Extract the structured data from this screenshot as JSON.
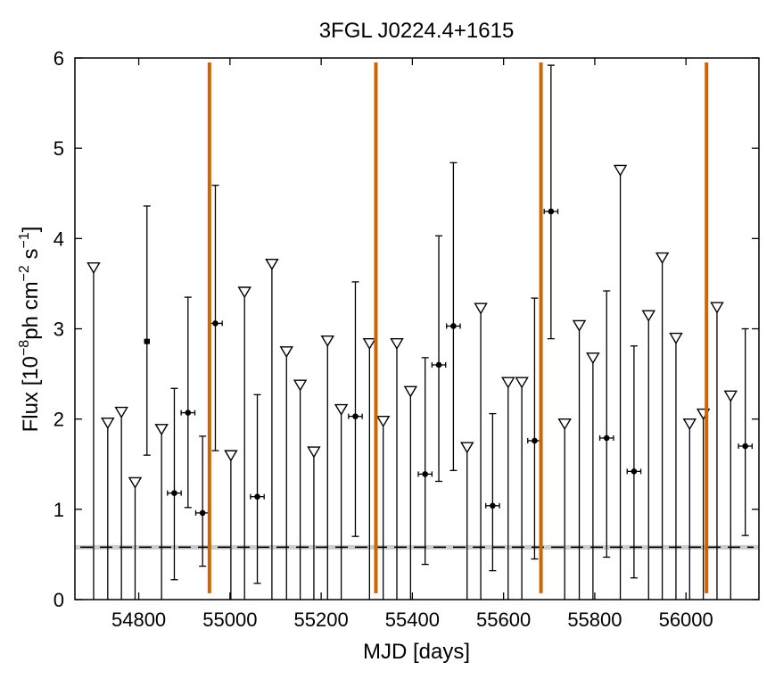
{
  "chart_data": {
    "type": "scatter",
    "title": "3FGL J0224.4+1615",
    "xlabel": "MJD [days]",
    "ylabel": {
      "prefix": "Flux [10",
      "exp1": "−8",
      "mid": "ph cm",
      "exp2": "−2",
      "mid2": " s",
      "exp3": "−1",
      "suffix": "]"
    },
    "xlim": [
      54660,
      56160
    ],
    "ylim": [
      0,
      6
    ],
    "xticks": [
      54800,
      55000,
      55200,
      55400,
      55600,
      55800,
      56000
    ],
    "yticks": [
      0,
      1,
      2,
      3,
      4,
      5,
      6
    ],
    "grid": false,
    "legend": "none",
    "colors": {
      "vertical_lines": "#cc6600",
      "baseline_band": "#cccccc",
      "baseline_dash": "#000000",
      "points": "#000000"
    },
    "baseline_flux": 0.58,
    "vertical_lines": [
      {
        "x": 54955,
        "y0": 0.07,
        "y1": 5.95
      },
      {
        "x": 55320,
        "y0": 0.07,
        "y1": 5.95
      },
      {
        "x": 55682,
        "y0": 0.07,
        "y1": 5.95
      },
      {
        "x": 56045,
        "y0": 0.07,
        "y1": 5.95
      }
    ],
    "detections": [
      {
        "x": 54818,
        "y": 2.86,
        "ylo": 1.6,
        "yhi": 4.36,
        "xerr": 5
      },
      {
        "x": 54878,
        "y": 1.18,
        "ylo": 0.22,
        "yhi": 2.34,
        "xerr": 15
      },
      {
        "x": 54908,
        "y": 2.07,
        "ylo": 1.02,
        "yhi": 3.35,
        "xerr": 15
      },
      {
        "x": 54940,
        "y": 0.96,
        "ylo": 0.37,
        "yhi": 1.81,
        "xerr": 15
      },
      {
        "x": 54968,
        "y": 3.06,
        "ylo": 1.65,
        "yhi": 4.59,
        "xerr": 15
      },
      {
        "x": 55060,
        "y": 1.14,
        "ylo": 0.18,
        "yhi": 2.27,
        "xerr": 15
      },
      {
        "x": 55275,
        "y": 2.03,
        "ylo": 0.7,
        "yhi": 3.52,
        "xerr": 15
      },
      {
        "x": 55428,
        "y": 1.39,
        "ylo": 0.39,
        "yhi": 2.68,
        "xerr": 15
      },
      {
        "x": 55458,
        "y": 2.6,
        "ylo": 1.31,
        "yhi": 4.03,
        "xerr": 15
      },
      {
        "x": 55490,
        "y": 3.03,
        "ylo": 1.43,
        "yhi": 4.84,
        "xerr": 15
      },
      {
        "x": 55576,
        "y": 1.04,
        "ylo": 0.32,
        "yhi": 2.06,
        "xerr": 15
      },
      {
        "x": 55668,
        "y": 1.76,
        "ylo": 0.45,
        "yhi": 3.34,
        "xerr": 15
      },
      {
        "x": 55704,
        "y": 4.3,
        "ylo": 2.89,
        "yhi": 5.92,
        "xerr": 15
      },
      {
        "x": 55826,
        "y": 1.79,
        "ylo": 0.47,
        "yhi": 3.42,
        "xerr": 15
      },
      {
        "x": 55886,
        "y": 1.42,
        "ylo": 0.24,
        "yhi": 2.81,
        "xerr": 15
      },
      {
        "x": 56130,
        "y": 1.7,
        "ylo": 0.71,
        "yhi": 3.0,
        "xerr": 15
      }
    ],
    "upper_limits": [
      {
        "x": 54701,
        "y": 3.69
      },
      {
        "x": 54732,
        "y": 1.97
      },
      {
        "x": 54762,
        "y": 2.09
      },
      {
        "x": 54792,
        "y": 1.31
      },
      {
        "x": 54850,
        "y": 1.9
      },
      {
        "x": 55002,
        "y": 1.61
      },
      {
        "x": 55032,
        "y": 3.42
      },
      {
        "x": 55092,
        "y": 3.73
      },
      {
        "x": 55124,
        "y": 2.76
      },
      {
        "x": 55154,
        "y": 2.39
      },
      {
        "x": 55184,
        "y": 1.65
      },
      {
        "x": 55214,
        "y": 2.88
      },
      {
        "x": 55244,
        "y": 2.12
      },
      {
        "x": 55306,
        "y": 2.85
      },
      {
        "x": 55336,
        "y": 1.99
      },
      {
        "x": 55366,
        "y": 2.85
      },
      {
        "x": 55396,
        "y": 2.32
      },
      {
        "x": 55520,
        "y": 1.7
      },
      {
        "x": 55550,
        "y": 3.24
      },
      {
        "x": 55610,
        "y": 2.42
      },
      {
        "x": 55640,
        "y": 2.42
      },
      {
        "x": 55734,
        "y": 1.96
      },
      {
        "x": 55766,
        "y": 3.05
      },
      {
        "x": 55796,
        "y": 2.69
      },
      {
        "x": 55856,
        "y": 4.77
      },
      {
        "x": 55918,
        "y": 3.16
      },
      {
        "x": 55948,
        "y": 3.8
      },
      {
        "x": 55978,
        "y": 2.91
      },
      {
        "x": 56008,
        "y": 1.96
      },
      {
        "x": 56038,
        "y": 2.07
      },
      {
        "x": 56068,
        "y": 3.25
      },
      {
        "x": 56098,
        "y": 2.27
      }
    ]
  }
}
